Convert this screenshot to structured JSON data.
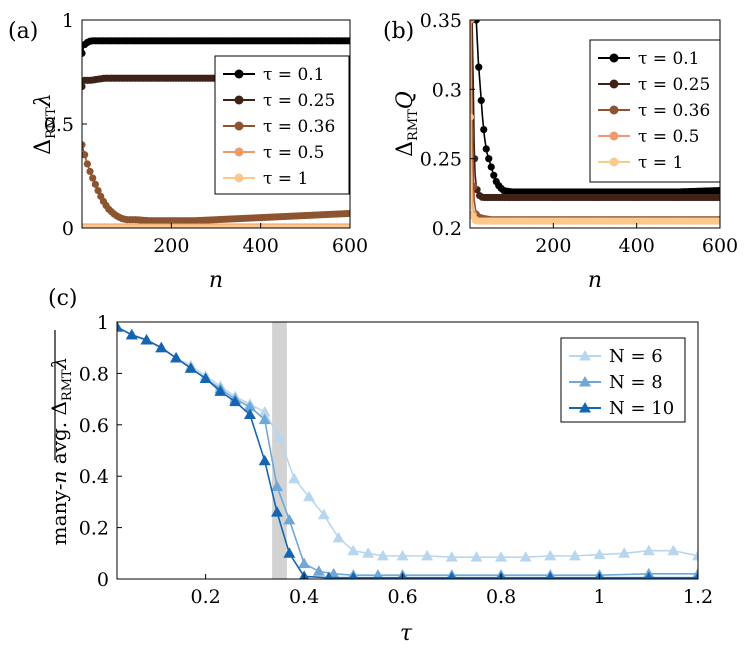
{
  "chart_data": [
    {
      "type": "line",
      "panel": "(a)",
      "xlabel": "n",
      "ylabel_main": "Δ",
      "ylabel_sub": "RMT",
      "ylabel_tail": "λ",
      "xlim": [
        0,
        600
      ],
      "ylim": [
        0,
        1
      ],
      "xticks": [
        "200",
        "400",
        "600"
      ],
      "yticks": [
        "0",
        "0.5",
        "1"
      ],
      "legend_position": "top-right",
      "series": [
        {
          "name": "τ = 0.1",
          "color": "#000000",
          "x": [
            0,
            5,
            10,
            20,
            50,
            100,
            200,
            300,
            400,
            500,
            600
          ],
          "y": [
            0.84,
            0.88,
            0.89,
            0.9,
            0.9,
            0.9,
            0.9,
            0.9,
            0.9,
            0.9,
            0.9
          ]
        },
        {
          "name": "τ = 0.25",
          "color": "#3e2218",
          "x": [
            0,
            5,
            10,
            20,
            50,
            100,
            200,
            300,
            400,
            500,
            600
          ],
          "y": [
            0.68,
            0.71,
            0.71,
            0.71,
            0.72,
            0.72,
            0.72,
            0.72,
            0.72,
            0.72,
            0.72
          ]
        },
        {
          "name": "τ = 0.36",
          "color": "#8c5530",
          "x": [
            0,
            5,
            10,
            20,
            30,
            40,
            50,
            60,
            70,
            80,
            90,
            100,
            120,
            150,
            200,
            250,
            300,
            350,
            400,
            450,
            500,
            550,
            600
          ],
          "y": [
            0.4,
            0.36,
            0.32,
            0.26,
            0.21,
            0.16,
            0.12,
            0.09,
            0.07,
            0.055,
            0.045,
            0.04,
            0.04,
            0.035,
            0.035,
            0.035,
            0.04,
            0.045,
            0.05,
            0.055,
            0.06,
            0.065,
            0.07
          ]
        },
        {
          "name": "τ = 0.5",
          "color": "#ef9a6a",
          "x": [
            0,
            100,
            200,
            300,
            400,
            500,
            600
          ],
          "y": [
            0.005,
            0.005,
            0.005,
            0.005,
            0.005,
            0.005,
            0.005
          ]
        },
        {
          "name": "τ = 1",
          "color": "#fdc98a",
          "x": [
            0,
            100,
            200,
            300,
            400,
            500,
            600
          ],
          "y": [
            0.0,
            0.0,
            0.0,
            0.0,
            0.0,
            0.0,
            0.0
          ]
        }
      ]
    },
    {
      "type": "line",
      "panel": "(b)",
      "xlabel": "n",
      "ylabel_main": "Δ",
      "ylabel_sub": "RMT",
      "ylabel_tail": "Q",
      "xlim": [
        0,
        600
      ],
      "ylim": [
        0.2,
        0.35
      ],
      "xticks": [
        "200",
        "400",
        "600"
      ],
      "yticks": [
        "0.2",
        "0.25",
        "0.3",
        "0.35"
      ],
      "legend_position": "top-right",
      "series": [
        {
          "name": "τ = 0.1",
          "color": "#000000",
          "x": [
            15,
            20,
            25,
            30,
            35,
            40,
            45,
            50,
            55,
            60,
            70,
            80,
            100,
            200,
            300,
            400,
            500,
            600
          ],
          "y": [
            0.35,
            0.32,
            0.3,
            0.28,
            0.265,
            0.255,
            0.25,
            0.245,
            0.24,
            0.235,
            0.23,
            0.227,
            0.226,
            0.226,
            0.226,
            0.226,
            0.226,
            0.227
          ]
        },
        {
          "name": "τ = 0.25",
          "color": "#3e2218",
          "x": [
            5,
            8,
            10,
            12,
            15,
            20,
            30,
            50,
            100,
            200,
            300,
            400,
            500,
            600
          ],
          "y": [
            0.35,
            0.3,
            0.26,
            0.24,
            0.23,
            0.224,
            0.222,
            0.222,
            0.222,
            0.222,
            0.222,
            0.222,
            0.222,
            0.222
          ]
        },
        {
          "name": "τ = 0.36",
          "color": "#8c5530",
          "x": [
            3,
            5,
            8,
            10,
            15,
            20,
            30,
            50,
            100,
            200,
            300,
            400,
            500,
            600
          ],
          "y": [
            0.35,
            0.28,
            0.24,
            0.22,
            0.21,
            0.208,
            0.207,
            0.206,
            0.206,
            0.206,
            0.206,
            0.206,
            0.206,
            0.206
          ]
        },
        {
          "name": "τ = 0.5",
          "color": "#ef9a6a",
          "x": [
            2,
            4,
            6,
            8,
            10,
            15,
            20,
            50,
            100,
            200,
            300,
            400,
            500,
            600
          ],
          "y": [
            0.35,
            0.25,
            0.22,
            0.21,
            0.207,
            0.206,
            0.205,
            0.205,
            0.205,
            0.205,
            0.205,
            0.205,
            0.205,
            0.205
          ]
        },
        {
          "name": "τ = 1",
          "color": "#fdc98a",
          "x": [
            1,
            2,
            4,
            6,
            8,
            10,
            15,
            20,
            50,
            100,
            200,
            300,
            400,
            500,
            600
          ],
          "y": [
            0.28,
            0.24,
            0.215,
            0.21,
            0.207,
            0.206,
            0.205,
            0.205,
            0.205,
            0.205,
            0.205,
            0.205,
            0.205,
            0.205,
            0.205
          ]
        }
      ]
    },
    {
      "type": "line",
      "panel": "(c)",
      "xlabel": "τ",
      "ylabel_prefix": "many-",
      "ylabel_italic": "n",
      "ylabel_suffix": " avg. ",
      "ylabel_main": "Δ",
      "ylabel_sub": "RMT",
      "ylabel_tail": "λ",
      "xlim": [
        0.02,
        1.2
      ],
      "ylim": [
        0,
        1
      ],
      "xticks": [
        "0.2",
        "0.4",
        "0.6",
        "0.8",
        "1",
        "1.2"
      ],
      "yticks": [
        "0",
        "0.2",
        "0.4",
        "0.6",
        "0.8",
        "1"
      ],
      "shaded_band": [
        0.335,
        0.365
      ],
      "legend_position": "top-right",
      "series": [
        {
          "name": "N = 6",
          "color": "#b8d7ee",
          "x": [
            0.02,
            0.05,
            0.08,
            0.11,
            0.14,
            0.17,
            0.2,
            0.23,
            0.26,
            0.29,
            0.32,
            0.35,
            0.38,
            0.41,
            0.44,
            0.47,
            0.5,
            0.53,
            0.56,
            0.6,
            0.65,
            0.7,
            0.75,
            0.8,
            0.85,
            0.9,
            0.95,
            1.0,
            1.05,
            1.1,
            1.15,
            1.2
          ],
          "y": [
            0.98,
            0.95,
            0.93,
            0.9,
            0.86,
            0.83,
            0.79,
            0.75,
            0.71,
            0.68,
            0.65,
            0.55,
            0.39,
            0.32,
            0.25,
            0.16,
            0.11,
            0.1,
            0.09,
            0.09,
            0.09,
            0.085,
            0.085,
            0.085,
            0.085,
            0.09,
            0.09,
            0.095,
            0.1,
            0.11,
            0.11,
            0.09
          ]
        },
        {
          "name": "N = 8",
          "color": "#6fa8d6",
          "x": [
            0.02,
            0.05,
            0.08,
            0.11,
            0.14,
            0.17,
            0.2,
            0.23,
            0.26,
            0.29,
            0.32,
            0.345,
            0.37,
            0.4,
            0.43,
            0.46,
            0.5,
            0.55,
            0.6,
            0.7,
            0.8,
            0.9,
            1.0,
            1.1,
            1.2
          ],
          "y": [
            0.98,
            0.95,
            0.93,
            0.9,
            0.86,
            0.82,
            0.78,
            0.74,
            0.7,
            0.67,
            0.62,
            0.36,
            0.23,
            0.06,
            0.03,
            0.02,
            0.015,
            0.015,
            0.015,
            0.015,
            0.015,
            0.015,
            0.015,
            0.02,
            0.02
          ]
        },
        {
          "name": "N = 10",
          "color": "#1565b0",
          "x": [
            0.02,
            0.05,
            0.08,
            0.11,
            0.14,
            0.17,
            0.2,
            0.23,
            0.26,
            0.29,
            0.32,
            0.345,
            0.37,
            0.4,
            0.45,
            0.5,
            0.6,
            0.7,
            0.8,
            0.9,
            1.0,
            1.1,
            1.2
          ],
          "y": [
            0.98,
            0.95,
            0.93,
            0.9,
            0.86,
            0.82,
            0.78,
            0.73,
            0.69,
            0.64,
            0.46,
            0.26,
            0.1,
            0.01,
            0.005,
            0.005,
            0.005,
            0.005,
            0.005,
            0.005,
            0.005,
            0.005,
            0.005
          ]
        }
      ]
    }
  ]
}
